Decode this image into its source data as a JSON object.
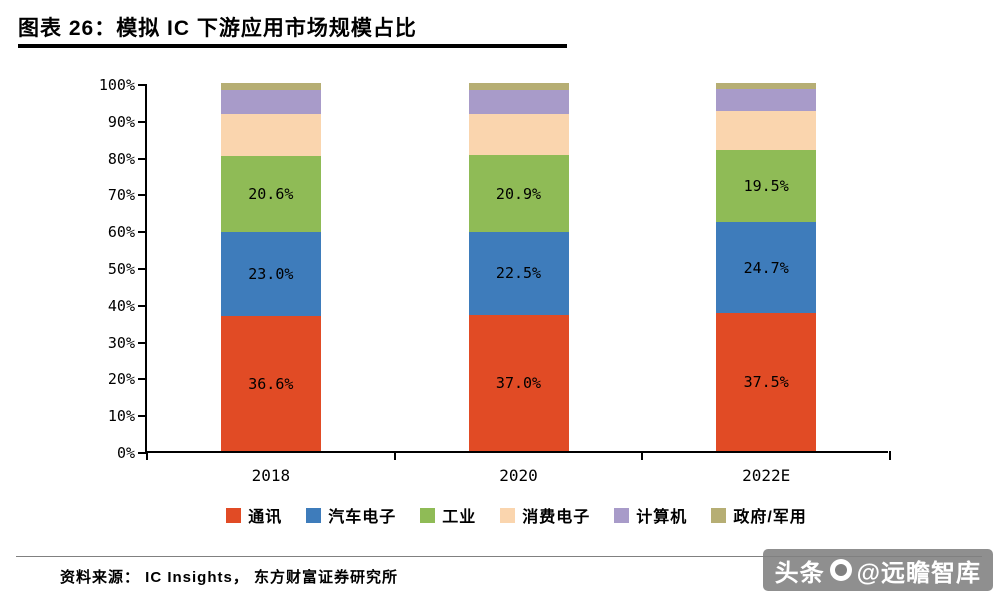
{
  "title": "图表 26：模拟 IC 下游应用市场规模占比",
  "source": "资料来源： IC Insights， 东方财富证券研究所",
  "watermark": {
    "left": "头条",
    "right": "@远瞻智库"
  },
  "chart_data": {
    "type": "bar",
    "stacked": true,
    "title": "模拟 IC 下游应用市场规模占比",
    "categories": [
      "2018",
      "2020",
      "2022E"
    ],
    "series": [
      {
        "name": "通讯",
        "color": "#E14B25",
        "values": [
          36.6,
          37.0,
          37.5
        ],
        "labels": [
          "36.6%",
          "37.0%",
          "37.5%"
        ]
      },
      {
        "name": "汽车电子",
        "color": "#3E7CBB",
        "values": [
          23.0,
          22.5,
          24.7
        ],
        "labels": [
          "23.0%",
          "22.5%",
          "24.7%"
        ]
      },
      {
        "name": "工业",
        "color": "#8FBB56",
        "values": [
          20.6,
          20.9,
          19.5
        ],
        "labels": [
          "20.6%",
          "20.9%",
          "19.5%"
        ]
      },
      {
        "name": "消费电子",
        "color": "#FAD5AE",
        "values": [
          11.3,
          11.1,
          10.8
        ],
        "labels": [
          "",
          "",
          ""
        ]
      },
      {
        "name": "计算机",
        "color": "#A89BC9",
        "values": [
          6.5,
          6.7,
          5.8
        ],
        "labels": [
          "",
          "",
          ""
        ]
      },
      {
        "name": "政府/军用",
        "color": "#B6AE74",
        "values": [
          2.0,
          1.8,
          1.7
        ],
        "labels": [
          "",
          "",
          ""
        ]
      }
    ],
    "ylim": [
      0,
      100
    ],
    "ytick_step": 10,
    "ytick_labels": [
      "0%",
      "10%",
      "20%",
      "30%",
      "40%",
      "50%",
      "60%",
      "70%",
      "80%",
      "90%",
      "100%"
    ],
    "legend_position": "bottom",
    "grid": false
  }
}
